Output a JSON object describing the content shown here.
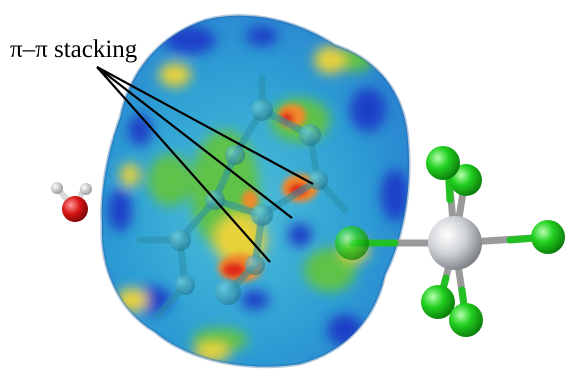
{
  "annotation": {
    "label": "π–π stacking"
  },
  "colors": {
    "background": "#ffffff",
    "surface_base": "#2d9fd4",
    "surface_dark_blue": "#1e3fc8",
    "surface_green": "#5fc24a",
    "surface_yellow": "#e8d23a",
    "surface_orange": "#f08a2a",
    "surface_red": "#e02a1c",
    "chlorine": "#1ec41e",
    "central_atom": "#cfd2d6",
    "oxygen": "#d81414",
    "hydrogen": "#e8e8e8",
    "bond_gray": "#9a9a9a",
    "pointer_line": "#000000"
  },
  "icons": {
    "surface": "hirshfeld-surface-icon",
    "water": "water-molecule-icon",
    "anion": "octahedral-anion-icon"
  }
}
